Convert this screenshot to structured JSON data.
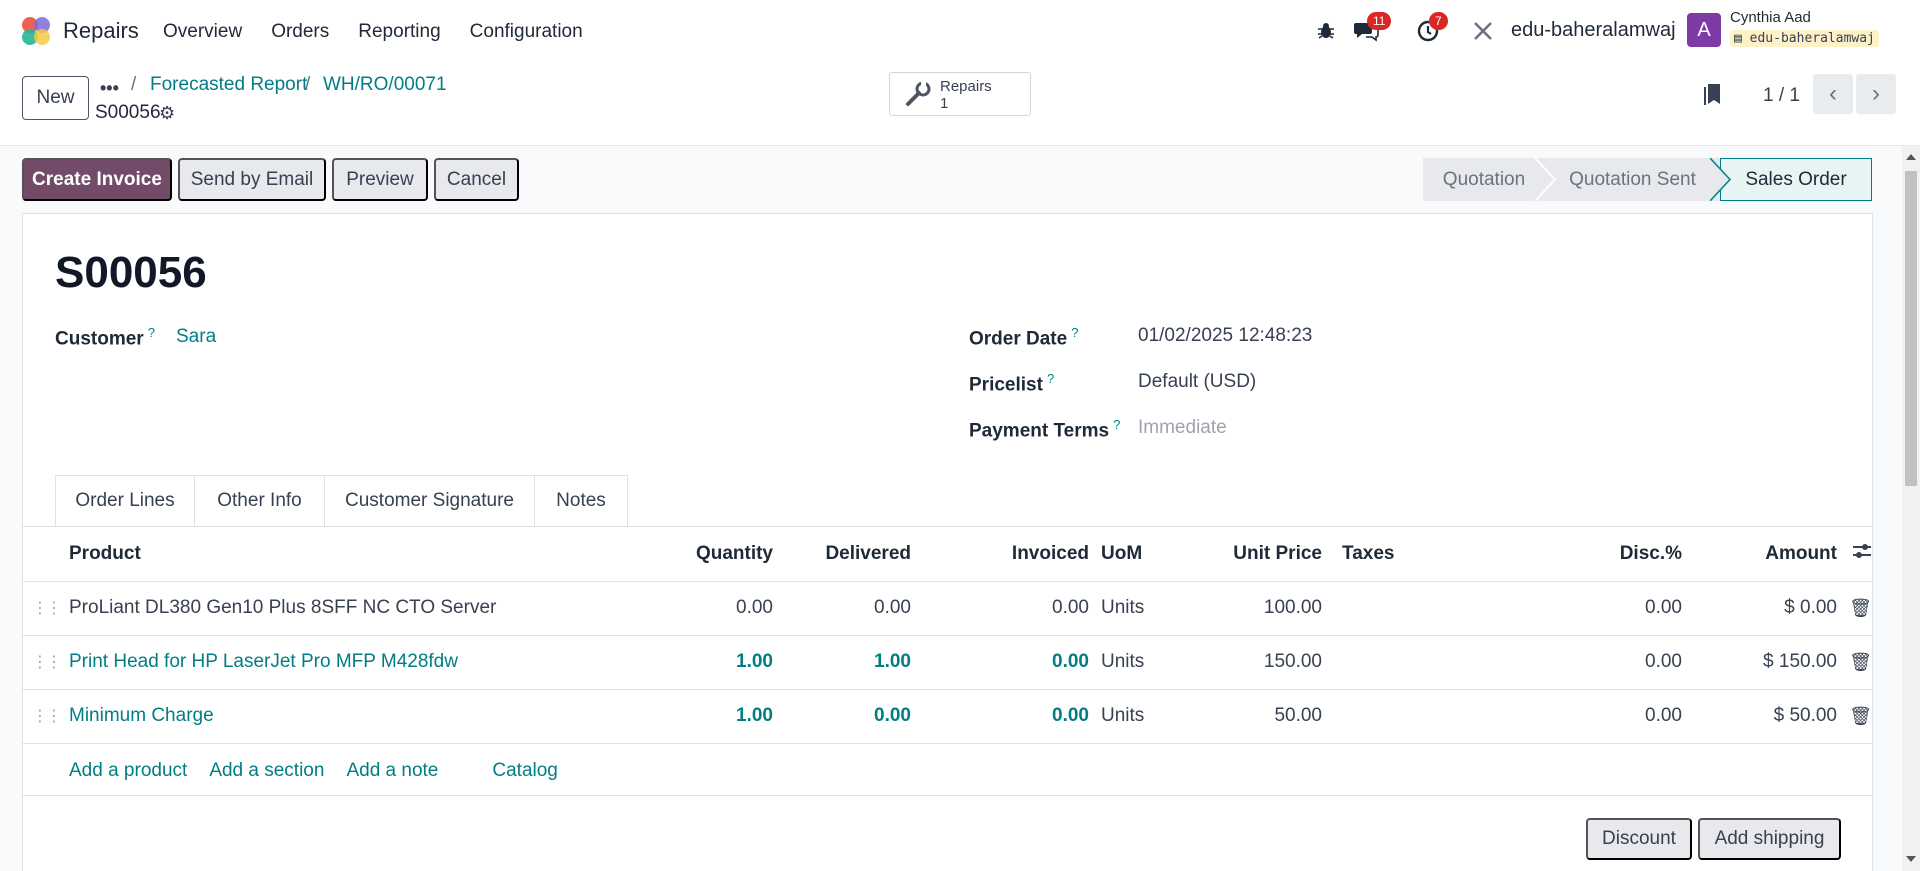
{
  "navbar": {
    "app_name": "Repairs",
    "menu": [
      "Overview",
      "Orders",
      "Reporting",
      "Configuration"
    ],
    "messages_count": "11",
    "activities_count": "7",
    "db_name": "edu-baheralamwaj",
    "avatar_letter": "A",
    "user_name": "Cynthia Aad",
    "user_db": "edu-baheralamwaj"
  },
  "control_panel": {
    "new_label": "New",
    "breadcrumb_dots": "•••",
    "breadcrumbs": [
      "Forecasted Report",
      "WH/RO/00071"
    ],
    "record_name": "S00056",
    "smart_button": {
      "label": "Repairs",
      "count": "1"
    },
    "pager": "1 / 1"
  },
  "statusbar": {
    "buttons": [
      "Create Invoice",
      "Send by Email",
      "Preview",
      "Cancel"
    ],
    "stages": [
      "Quotation",
      "Quotation Sent",
      "Sales Order"
    ],
    "active_stage": "Sales Order"
  },
  "form": {
    "title": "S00056",
    "customer_label": "Customer",
    "customer_value": "Sara",
    "order_date_label": "Order Date",
    "order_date_value": "01/02/2025 12:48:23",
    "pricelist_label": "Pricelist",
    "pricelist_value": "Default (USD)",
    "payment_terms_label": "Payment Terms",
    "payment_terms_placeholder": "Immediate",
    "help_mark": "?"
  },
  "tabs": [
    "Order Lines",
    "Other Info",
    "Customer Signature",
    "Notes"
  ],
  "table": {
    "headers": [
      "Product",
      "Quantity",
      "Delivered",
      "Invoiced",
      "UoM",
      "Unit Price",
      "Taxes",
      "Disc.%",
      "Amount"
    ],
    "rows": [
      {
        "product": "ProLiant DL380 Gen10 Plus 8SFF NC CTO Server",
        "quantity": "0.00",
        "delivered": "0.00",
        "invoiced": "0.00",
        "uom": "Units",
        "unit_price": "100.00",
        "taxes": "",
        "disc": "0.00",
        "amount": "$ 0.00"
      },
      {
        "product": "Print Head for HP LaserJet Pro MFP M428fdw",
        "quantity": "1.00",
        "delivered": "1.00",
        "invoiced": "0.00",
        "uom": "Units",
        "unit_price": "150.00",
        "taxes": "",
        "disc": "0.00",
        "amount": "$ 150.00"
      },
      {
        "product": "Minimum Charge",
        "quantity": "1.00",
        "delivered": "0.00",
        "invoiced": "0.00",
        "uom": "Units",
        "unit_price": "50.00",
        "taxes": "",
        "disc": "0.00",
        "amount": "$ 50.00"
      }
    ],
    "add_links": [
      "Add a product",
      "Add a section",
      "Add a note",
      "Catalog"
    ],
    "footer_buttons": [
      "Discount",
      "Add shipping"
    ]
  },
  "colors": {
    "brand": "#714b67",
    "link": "#017e84",
    "badge": "#dc2626"
  }
}
